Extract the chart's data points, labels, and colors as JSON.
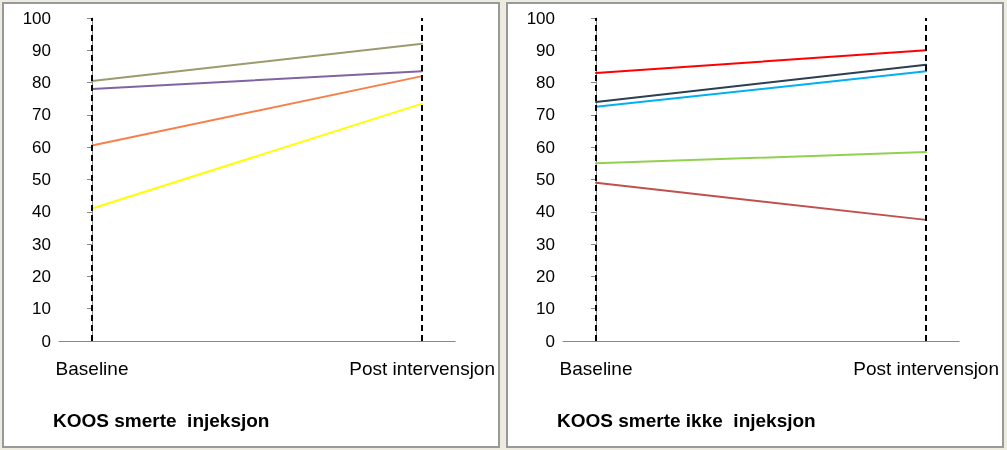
{
  "chart_data": [
    {
      "type": "line",
      "xlabel": "KOOS smerte  injeksjon",
      "categories": [
        "Baseline",
        "Post intervensjon"
      ],
      "ylim": [
        0,
        100
      ],
      "yticks": [
        0,
        10,
        20,
        30,
        40,
        50,
        60,
        70,
        80,
        90,
        100
      ],
      "grid": false,
      "marker": "none",
      "line_style": "solid",
      "ref_lines": [
        {
          "axis": "x",
          "value": "Baseline",
          "line_style": "dashed",
          "color": "#000000"
        },
        {
          "axis": "x",
          "value": "Post intervensjon",
          "line_style": "dashed",
          "color": "#000000"
        }
      ],
      "series": [
        {
          "color": "#9c9a6e",
          "values": [
            80.5,
            92
          ]
        },
        {
          "color": "#8064a2",
          "values": [
            78,
            83.5
          ]
        },
        {
          "color": "#f7804a",
          "values": [
            60.5,
            82
          ]
        },
        {
          "color": "#ffff00",
          "values": [
            41,
            73.5
          ]
        }
      ]
    },
    {
      "type": "line",
      "xlabel": "KOOS smerte ikke  injeksjon",
      "categories": [
        "Baseline",
        "Post intervensjon"
      ],
      "ylim": [
        0,
        100
      ],
      "yticks": [
        0,
        10,
        20,
        30,
        40,
        50,
        60,
        70,
        80,
        90,
        100
      ],
      "grid": false,
      "marker": "none",
      "line_style": "solid",
      "ref_lines": [
        {
          "axis": "x",
          "value": "Baseline",
          "line_style": "dashed",
          "color": "#000000"
        },
        {
          "axis": "x",
          "value": "Post intervensjon",
          "line_style": "dashed",
          "color": "#000000"
        }
      ],
      "series": [
        {
          "color": "#ff0000",
          "values": [
            83,
            90
          ]
        },
        {
          "color": "#2c3e50",
          "values": [
            74,
            85.5
          ]
        },
        {
          "color": "#00b0f0",
          "values": [
            72.5,
            83.5
          ]
        },
        {
          "color": "#92d050",
          "values": [
            55,
            58.5
          ]
        },
        {
          "color": "#c0504d",
          "values": [
            49,
            37.5
          ]
        }
      ]
    }
  ]
}
